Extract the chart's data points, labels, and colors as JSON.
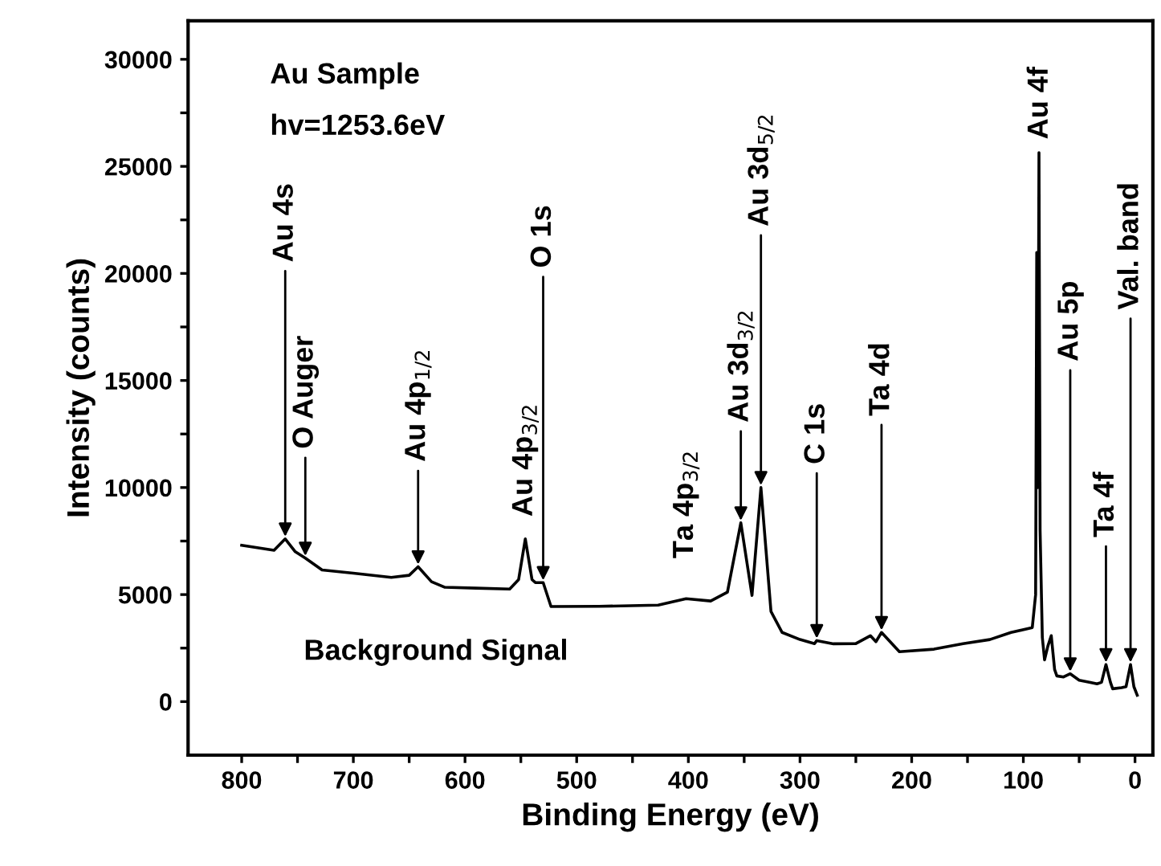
{
  "chart_data": {
    "type": "line",
    "xlabel": "Binding Energy (eV)",
    "ylabel": "Intensity (counts)",
    "x": [
      800,
      771,
      761,
      752,
      743,
      728,
      700,
      666,
      650,
      642,
      630,
      618,
      590,
      560,
      552,
      546,
      540,
      537,
      530,
      523,
      480,
      427,
      402,
      380,
      365,
      353,
      343,
      335,
      326,
      316,
      300,
      287,
      285,
      270,
      250,
      237,
      232,
      227,
      211,
      180,
      154,
      130,
      111,
      92,
      89,
      88,
      87,
      86,
      85,
      83,
      81,
      78,
      75,
      72,
      70,
      64,
      58,
      50,
      40,
      34,
      30,
      26,
      22,
      20,
      12,
      8,
      4,
      1,
      -2
    ],
    "series": [
      {
        "color": "#000000",
        "values": [
          7300,
          7070,
          7600,
          7000,
          6700,
          6150,
          6000,
          5800,
          5900,
          6300,
          5600,
          5340,
          5300,
          5260,
          5700,
          7600,
          5700,
          5560,
          5560,
          4440,
          4450,
          4510,
          4810,
          4700,
          5110,
          8350,
          4960,
          10000,
          4210,
          3230,
          2900,
          2710,
          2850,
          2700,
          2710,
          3080,
          2800,
          3230,
          2330,
          2450,
          2710,
          2900,
          3230,
          3460,
          5000,
          20980,
          10000,
          25640,
          8000,
          3000,
          1950,
          2600,
          3080,
          1500,
          1200,
          1150,
          1300,
          1000,
          900,
          830,
          900,
          1730,
          900,
          600,
          650,
          700,
          1730,
          700,
          300
        ]
      }
    ],
    "xlim": [
      848,
      -16
    ],
    "ylim": [
      -2500,
      31800
    ],
    "xticks": [
      800,
      {
        "value": 750,
        "label": null
      },
      700,
      {
        "value": 650,
        "label": null
      },
      600,
      {
        "value": 550,
        "label": null
      },
      500,
      {
        "value": 450,
        "label": null
      },
      400,
      {
        "value": 350,
        "label": null
      },
      300,
      {
        "value": 250,
        "label": null
      },
      200,
      {
        "value": 150,
        "label": null
      },
      100,
      {
        "value": 50,
        "label": null
      },
      0
    ],
    "yticks": [
      0,
      {
        "value": 2500,
        "label": null
      },
      5000,
      {
        "value": 7500,
        "label": null
      },
      10000,
      {
        "value": 12500,
        "label": null
      },
      15000,
      {
        "value": 17500,
        "label": null
      },
      20000,
      {
        "value": 22500,
        "label": null
      },
      25000,
      {
        "value": 27500,
        "label": null
      },
      30000
    ],
    "grid": false,
    "legend": false,
    "annotations": [
      "Au Sample",
      "hv=1253.6eV",
      "Background Signal",
      {
        "text": "Au 4s",
        "x": 761,
        "y": 7600
      },
      {
        "text": "O Auger",
        "x": 743,
        "y": 6700
      },
      {
        "text": "Au 4p$_{1/2}$",
        "x": 642,
        "y": 6300
      },
      {
        "text": "Au 4p$_{3/2}$",
        "x": 546,
        "y": 7600
      },
      {
        "text": "O 1s",
        "x": 530,
        "y": 5560
      },
      {
        "text": "Ta 4p$_{3/2}$",
        "x": 402,
        "y": 4810
      },
      {
        "text": "Au 3d$_{3/2}$",
        "x": 353,
        "y": 8350
      },
      {
        "text": "Au 3d$_{5/2}$",
        "x": 335,
        "y": 10000
      },
      {
        "text": "C 1s",
        "x": 285,
        "y": 2850
      },
      {
        "text": "Ta 4d",
        "x": 227,
        "y": 3230
      },
      {
        "text": "Au 4f",
        "x": 85,
        "y": 25640
      },
      {
        "text": "Au 5p",
        "x": 58,
        "y": 1300
      },
      {
        "text": "Ta 4f",
        "x": 26,
        "y": 1730
      },
      {
        "text": "Val. band",
        "x": 4,
        "y": 1730
      }
    ]
  }
}
